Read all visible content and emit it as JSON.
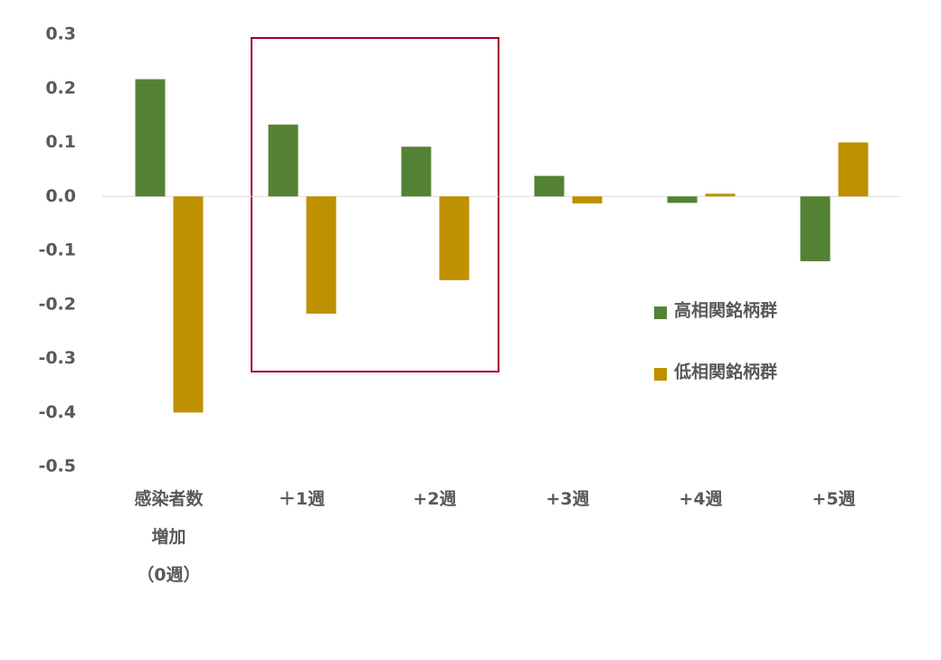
{
  "chart_data": {
    "type": "bar",
    "categories": [
      "感染者数\n増加\n（0週）",
      "＋1週",
      "+2週",
      "+3週",
      "+4週",
      "+5週"
    ],
    "series": [
      {
        "name": "高相関銘柄群",
        "color": "#548235",
        "values": [
          0.217,
          0.133,
          0.092,
          0.038,
          -0.012,
          -0.12
        ]
      },
      {
        "name": "低相関銘柄群",
        "color": "#bf9000",
        "values": [
          -0.4,
          -0.217,
          -0.155,
          -0.013,
          0.005,
          0.1
        ]
      }
    ],
    "ylim": [
      -0.5,
      0.3
    ],
    "yticks": [
      0.3,
      0.2,
      0.1,
      {
        "value": 0,
        "label": "0.0"
      },
      -0.1,
      -0.2,
      -0.3,
      -0.4,
      -0.5
    ],
    "legend": "right"
  }
}
